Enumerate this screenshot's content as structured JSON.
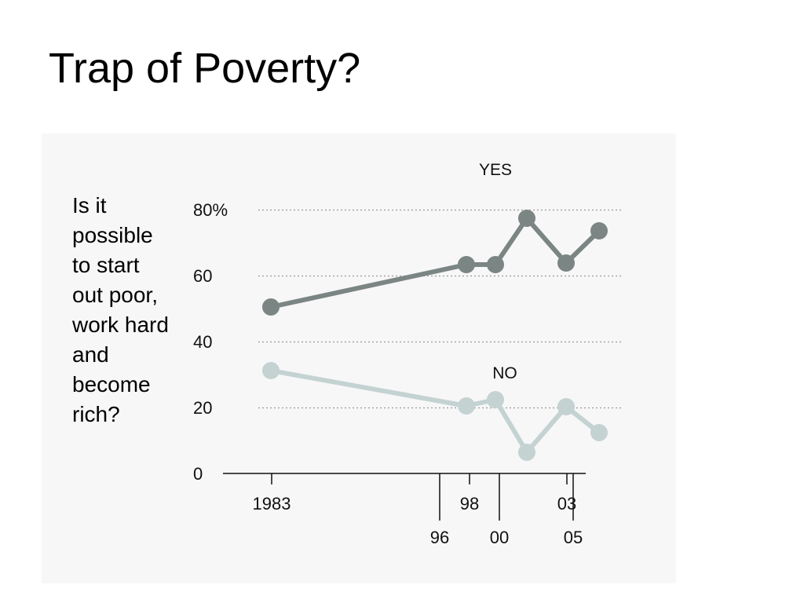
{
  "slide": {
    "title": "Trap of Poverty?"
  },
  "chart_data": {
    "type": "line",
    "question": "Is it\npossible\nto start\nout poor,\nwork hard\nand\nbecome\nrich?",
    "x": [
      1983,
      1996,
      1998,
      2000,
      2003,
      2005
    ],
    "series": [
      {
        "name": "YES",
        "color": "#7b8584",
        "values": [
          50,
          63,
          63,
          77,
          63,
          73
        ]
      },
      {
        "name": "NO",
        "color": "#c4d2d2",
        "values": [
          31,
          20,
          22,
          7,
          20,
          13
        ]
      }
    ],
    "y_ticks": [
      "0",
      "20",
      "40",
      "60",
      "80%"
    ],
    "ylim": [
      0,
      80
    ],
    "x_ticks_row1": [
      "1983",
      "98",
      "03"
    ],
    "x_ticks_row2": [
      "96",
      "00",
      "05"
    ],
    "grid": "dotted"
  }
}
